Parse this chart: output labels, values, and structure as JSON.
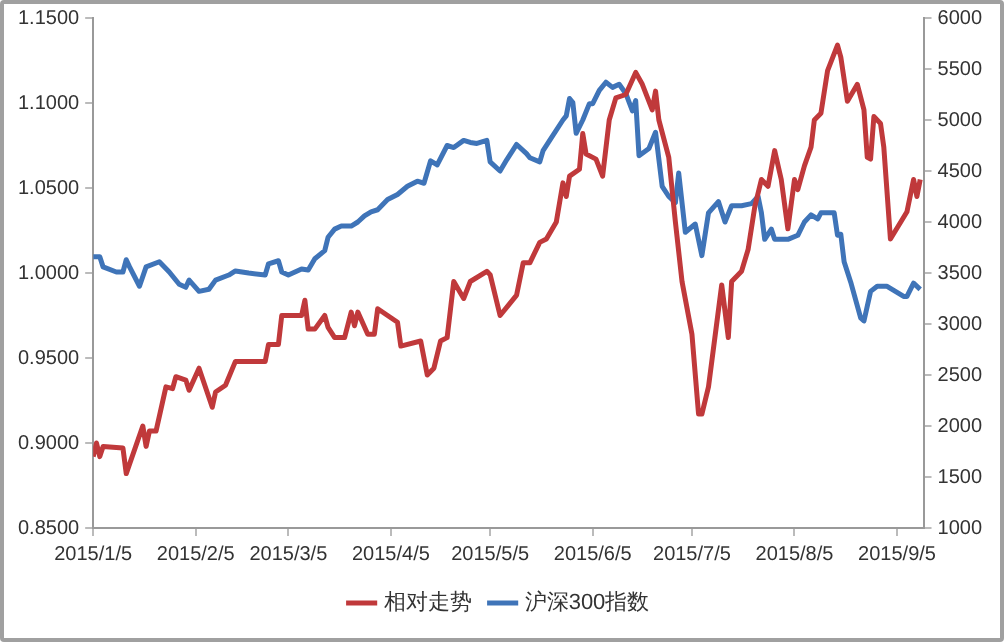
{
  "chart_data": {
    "type": "line",
    "legend": "bottom",
    "grid": false,
    "marker": "none",
    "line_style": "solid",
    "xlim": [
      "2015-01-05",
      "2015-09-13"
    ],
    "xticks": [
      {
        "value": "2015-01-05",
        "label": "2015/1/5"
      },
      {
        "value": "2015-02-05",
        "label": "2015/2/5"
      },
      {
        "value": "2015-03-05",
        "label": "2015/3/5"
      },
      {
        "value": "2015-04-05",
        "label": "2015/4/5"
      },
      {
        "value": "2015-05-05",
        "label": "2015/5/5"
      },
      {
        "value": "2015-06-05",
        "label": "2015/6/5"
      },
      {
        "value": "2015-07-05",
        "label": "2015/7/5"
      },
      {
        "value": "2015-08-05",
        "label": "2015/8/5"
      },
      {
        "value": "2015-09-05",
        "label": "2015/9/5"
      }
    ],
    "ylim": [
      0.85,
      1.15
    ],
    "yticks": [
      {
        "value": 0.85,
        "label": "0.8500"
      },
      {
        "value": 0.9,
        "label": "0.9000"
      },
      {
        "value": 0.95,
        "label": "0.9500"
      },
      {
        "value": 1.0,
        "label": "1.0000"
      },
      {
        "value": 1.05,
        "label": "1.0500"
      },
      {
        "value": 1.1,
        "label": "1.1000"
      },
      {
        "value": 1.15,
        "label": "1.1500"
      }
    ],
    "y2lim": [
      1000,
      6000
    ],
    "y2ticks": [
      1000,
      1500,
      2000,
      2500,
      3000,
      3500,
      4000,
      4500,
      5000,
      5500,
      6000
    ],
    "series": [
      {
        "name": "相对走势",
        "color": "#c0393b",
        "x": [
          "2015-01-05",
          "2015-01-06",
          "2015-01-07",
          "2015-01-08",
          "2015-01-14",
          "2015-01-15",
          "2015-01-20",
          "2015-01-21",
          "2015-01-22",
          "2015-01-24",
          "2015-01-27",
          "2015-01-29",
          "2015-01-30",
          "2015-02-02",
          "2015-02-03",
          "2015-02-06",
          "2015-02-10",
          "2015-02-11",
          "2015-02-14",
          "2015-02-17",
          "2015-02-26",
          "2015-02-27",
          "2015-03-02",
          "2015-03-03",
          "2015-03-09",
          "2015-03-10",
          "2015-03-11",
          "2015-03-13",
          "2015-03-16",
          "2015-03-17",
          "2015-03-19",
          "2015-03-22",
          "2015-03-24",
          "2015-03-25",
          "2015-03-26",
          "2015-03-29",
          "2015-03-31",
          "2015-04-01",
          "2015-04-07",
          "2015-04-08",
          "2015-04-14",
          "2015-04-16",
          "2015-04-18",
          "2015-04-20",
          "2015-04-22",
          "2015-04-24",
          "2015-04-27",
          "2015-04-29",
          "2015-05-04",
          "2015-05-05",
          "2015-05-08",
          "2015-05-13",
          "2015-05-15",
          "2015-05-17",
          "2015-05-20",
          "2015-05-22",
          "2015-05-25",
          "2015-05-27",
          "2015-05-28",
          "2015-05-29",
          "2015-06-01",
          "2015-06-02",
          "2015-06-03",
          "2015-06-06",
          "2015-06-08",
          "2015-06-10",
          "2015-06-12",
          "2015-06-15",
          "2015-06-18",
          "2015-06-20",
          "2015-06-23",
          "2015-06-24",
          "2015-06-25",
          "2015-06-28",
          "2015-06-30",
          "2015-07-02",
          "2015-07-05",
          "2015-07-07",
          "2015-07-08",
          "2015-07-10",
          "2015-07-14",
          "2015-07-16",
          "2015-07-17",
          "2015-07-20",
          "2015-07-22",
          "2015-07-24",
          "2015-07-26",
          "2015-07-28",
          "2015-07-30",
          "2015-08-01",
          "2015-08-03",
          "2015-08-05",
          "2015-08-06",
          "2015-08-08",
          "2015-08-10",
          "2015-08-11",
          "2015-08-13",
          "2015-08-15",
          "2015-08-18",
          "2015-08-19",
          "2015-08-21",
          "2015-08-24",
          "2015-08-26",
          "2015-08-27",
          "2015-08-28",
          "2015-08-29",
          "2015-08-31",
          "2015-09-01",
          "2015-09-03",
          "2015-09-08",
          "2015-09-10",
          "2015-09-11",
          "2015-09-12"
        ],
        "values": [
          0.892,
          0.9,
          0.892,
          0.898,
          0.897,
          0.882,
          0.91,
          0.898,
          0.907,
          0.907,
          0.933,
          0.932,
          0.939,
          0.937,
          0.931,
          0.944,
          0.921,
          0.93,
          0.934,
          0.948,
          0.948,
          0.958,
          0.958,
          0.975,
          0.975,
          0.984,
          0.967,
          0.967,
          0.975,
          0.968,
          0.962,
          0.962,
          0.977,
          0.969,
          0.977,
          0.964,
          0.964,
          0.979,
          0.971,
          0.957,
          0.96,
          0.94,
          0.944,
          0.96,
          0.962,
          0.995,
          0.985,
          0.995,
          1.001,
          0.999,
          0.975,
          0.987,
          1.006,
          1.006,
          1.018,
          1.02,
          1.03,
          1.053,
          1.045,
          1.057,
          1.061,
          1.082,
          1.07,
          1.067,
          1.057,
          1.09,
          1.103,
          1.105,
          1.118,
          1.111,
          1.096,
          1.107,
          1.09,
          1.068,
          1.03,
          0.995,
          0.964,
          0.917,
          0.917,
          0.933,
          0.993,
          0.962,
          0.995,
          1.001,
          1.014,
          1.039,
          1.055,
          1.051,
          1.072,
          1.055,
          1.026,
          1.055,
          1.049,
          1.063,
          1.074,
          1.09,
          1.094,
          1.119,
          1.134,
          1.127,
          1.101,
          1.111,
          1.096,
          1.068,
          1.067,
          1.092,
          1.088,
          1.074,
          1.02,
          1.036,
          1.055,
          1.045,
          1.055
        ]
      },
      {
        "name": "沪深300指数",
        "color": "#3f74b8",
        "axis": "y2",
        "x": [
          "2015-01-05",
          "2015-01-07",
          "2015-01-08",
          "2015-01-12",
          "2015-01-14",
          "2015-01-15",
          "2015-01-16",
          "2015-01-19",
          "2015-01-21",
          "2015-01-25",
          "2015-01-28",
          "2015-01-31",
          "2015-02-02",
          "2015-02-03",
          "2015-02-06",
          "2015-02-09",
          "2015-02-11",
          "2015-02-15",
          "2015-02-17",
          "2015-02-21",
          "2015-02-26",
          "2015-02-27",
          "2015-03-02",
          "2015-03-03",
          "2015-03-05",
          "2015-03-09",
          "2015-03-11",
          "2015-03-13",
          "2015-03-16",
          "2015-03-17",
          "2015-03-19",
          "2015-03-21",
          "2015-03-24",
          "2015-03-26",
          "2015-03-28",
          "2015-03-30",
          "2015-04-01",
          "2015-04-04",
          "2015-04-07",
          "2015-04-10",
          "2015-04-13",
          "2015-04-15",
          "2015-04-17",
          "2015-04-19",
          "2015-04-22",
          "2015-04-24",
          "2015-04-27",
          "2015-04-29",
          "2015-05-01",
          "2015-05-04",
          "2015-05-05",
          "2015-05-08",
          "2015-05-10",
          "2015-05-13",
          "2015-05-16",
          "2015-05-17",
          "2015-05-20",
          "2015-05-21",
          "2015-05-23",
          "2015-05-27",
          "2015-05-28",
          "2015-05-29",
          "2015-05-30",
          "2015-05-31",
          "2015-06-02",
          "2015-06-04",
          "2015-06-05",
          "2015-06-07",
          "2015-06-09",
          "2015-06-11",
          "2015-06-13",
          "2015-06-15",
          "2015-06-17",
          "2015-06-18",
          "2015-06-19",
          "2015-06-22",
          "2015-06-24",
          "2015-06-26",
          "2015-06-28",
          "2015-06-30",
          "2015-07-01",
          "2015-07-03",
          "2015-07-06",
          "2015-07-08",
          "2015-07-10",
          "2015-07-13",
          "2015-07-15",
          "2015-07-17",
          "2015-07-20",
          "2015-07-23",
          "2015-07-25",
          "2015-07-26",
          "2015-07-27",
          "2015-07-29",
          "2015-07-30",
          "2015-08-03",
          "2015-08-06",
          "2015-08-08",
          "2015-08-10",
          "2015-08-12",
          "2015-08-13",
          "2015-08-17",
          "2015-08-18",
          "2015-08-19",
          "2015-08-20",
          "2015-08-22",
          "2015-08-25",
          "2015-08-26",
          "2015-08-28",
          "2015-08-30",
          "2015-09-02",
          "2015-09-07",
          "2015-09-08",
          "2015-09-10",
          "2015-09-12"
        ],
        "values": [
          3660,
          3660,
          3560,
          3510,
          3510,
          3630,
          3560,
          3370,
          3560,
          3610,
          3510,
          3390,
          3360,
          3430,
          3320,
          3340,
          3430,
          3480,
          3520,
          3500,
          3480,
          3590,
          3620,
          3510,
          3480,
          3540,
          3530,
          3640,
          3720,
          3850,
          3930,
          3960,
          3960,
          4000,
          4060,
          4100,
          4120,
          4220,
          4270,
          4350,
          4400,
          4380,
          4600,
          4560,
          4750,
          4730,
          4800,
          4780,
          4770,
          4800,
          4590,
          4500,
          4610,
          4760,
          4670,
          4630,
          4590,
          4700,
          4800,
          5000,
          5040,
          5210,
          5170,
          4870,
          5000,
          5160,
          5160,
          5290,
          5370,
          5320,
          5350,
          5260,
          5090,
          5190,
          4650,
          4720,
          4880,
          4350,
          4250,
          4190,
          4480,
          3900,
          3980,
          3670,
          4090,
          4200,
          4000,
          4160,
          4160,
          4180,
          4250,
          4090,
          3830,
          3930,
          3830,
          3830,
          3870,
          4000,
          4070,
          4030,
          4090,
          4090,
          3870,
          3880,
          3610,
          3410,
          3060,
          3030,
          3320,
          3370,
          3370,
          3270,
          3270,
          3400,
          3340
        ]
      }
    ]
  }
}
